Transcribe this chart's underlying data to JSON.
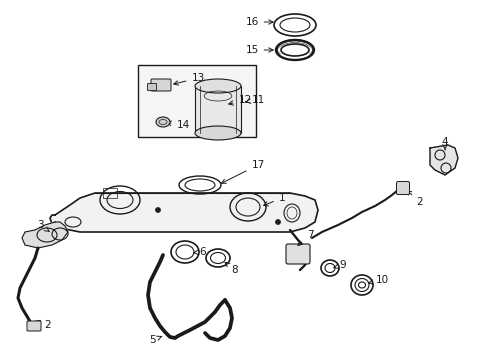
{
  "background_color": "#ffffff",
  "line_color": "#1a1a1a",
  "fig_width": 4.89,
  "fig_height": 3.6,
  "dpi": 100,
  "lw_thick": 2.2,
  "lw_med": 1.2,
  "lw_thin": 0.8,
  "fs_label": 7.5
}
